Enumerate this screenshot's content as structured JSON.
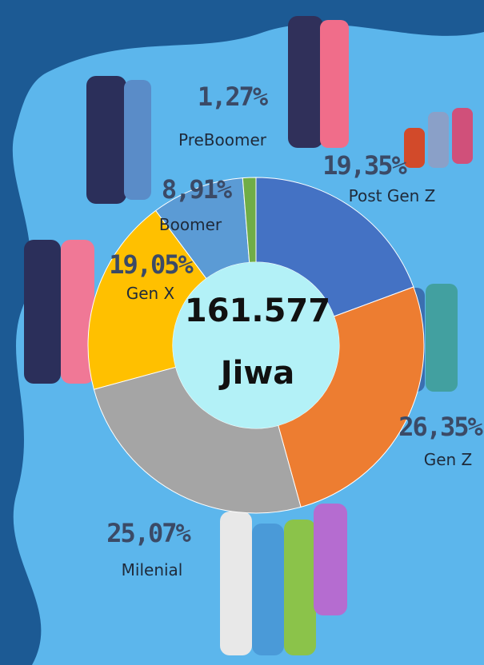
{
  "chart_data": {
    "type": "donut",
    "categories": [
      "Post Gen Z",
      "Gen Z",
      "Milenial",
      "Gen X",
      "Boomer",
      "PreBoomer"
    ],
    "values": [
      19.35,
      26.35,
      25.07,
      19.05,
      8.91,
      1.27
    ],
    "value_labels": [
      "19,35%",
      "26,35%",
      "25,07%",
      "19,05%",
      "8,91%",
      "1,27%"
    ],
    "colors": [
      "#4472c4",
      "#ed7d31",
      "#a5a5a5",
      "#ffc000",
      "#5b9bd5",
      "#70ad47"
    ],
    "center_title": "161.577",
    "center_subtitle": "Jiwa"
  }
}
